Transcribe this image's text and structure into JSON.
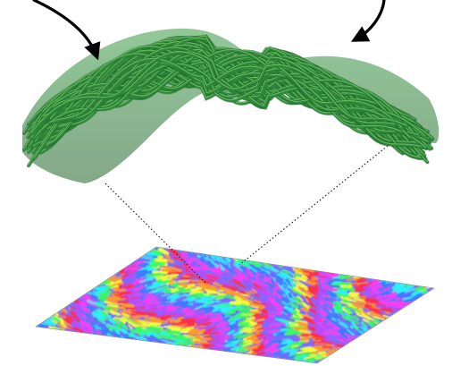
{
  "figure": {
    "elements": [
      {
        "name": "fiber-bundle",
        "kind": "3D rendering of a curved bundle of helically twisted fibers"
      },
      {
        "name": "textured-substrate-plane",
        "kind": "3D perspective plane with rainbow orientation-map texture"
      },
      {
        "name": "pointer-arrow-left",
        "kind": "black curved arrow"
      },
      {
        "name": "pointer-arrow-right",
        "kind": "black curved arrow"
      },
      {
        "name": "projection-line-left",
        "kind": "dotted leader line"
      },
      {
        "name": "projection-line-right",
        "kind": "dotted leader line"
      }
    ],
    "colors": {
      "fiber_base": "#2f8a3c",
      "fiber_highlight": "#7fcf6e",
      "fiber_shadow": "#1d5a26",
      "arrow": "#000000",
      "leader_line": "#222222",
      "texture_palette": [
        "#ff3df0",
        "#3d7bff",
        "#2ef0ff",
        "#37ff5a",
        "#f4ff3a",
        "#ff9b2e",
        "#ff2e4a",
        "#b44dff"
      ]
    }
  }
}
